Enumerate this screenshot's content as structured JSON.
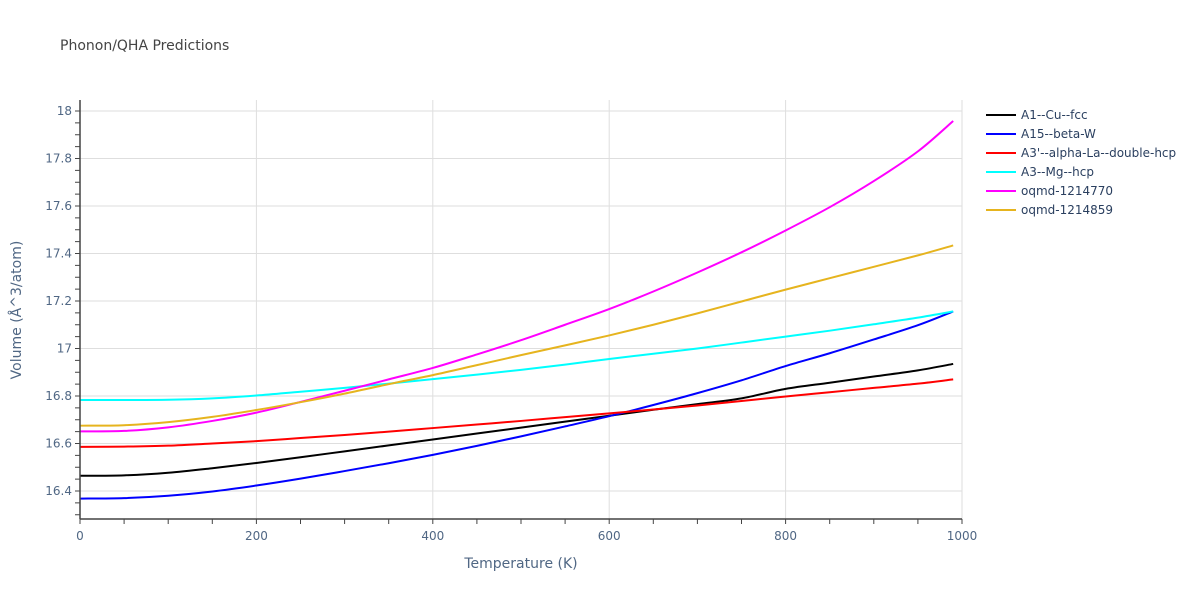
{
  "chart_data": {
    "type": "line",
    "title": "Phonon/QHA Predictions",
    "xlabel": "Temperature (K)",
    "ylabel": "Volume (Å^3/atom)",
    "xlim": [
      0,
      1000
    ],
    "ylim": [
      16.28,
      18.05
    ],
    "xticks": [
      0,
      200,
      400,
      600,
      800,
      1000
    ],
    "yticks": [
      16.4,
      16.6,
      16.8,
      17,
      17.2,
      17.4,
      17.6,
      17.8,
      18
    ],
    "ytick_labels": [
      "16.4",
      "16.6",
      "16.8",
      "17",
      "17.2",
      "17.4",
      "17.6",
      "17.8",
      "18"
    ],
    "grid": true,
    "legend_position": "right",
    "x": [
      0,
      50,
      100,
      150,
      200,
      250,
      300,
      350,
      400,
      450,
      500,
      550,
      600,
      650,
      700,
      750,
      800,
      850,
      900,
      950,
      990
    ],
    "series": [
      {
        "name": "A1--Cu--fcc",
        "color": "#000000",
        "values": [
          16.464,
          16.466,
          16.477,
          16.496,
          16.518,
          16.542,
          16.567,
          16.592,
          16.617,
          16.642,
          16.667,
          16.692,
          16.717,
          16.742,
          16.766,
          16.79,
          16.83,
          16.856,
          16.882,
          16.908,
          16.935
        ]
      },
      {
        "name": "A15--beta-W",
        "color": "#0000ff",
        "values": [
          16.368,
          16.37,
          16.38,
          16.398,
          16.423,
          16.452,
          16.484,
          16.517,
          16.552,
          16.59,
          16.63,
          16.672,
          16.715,
          16.762,
          16.812,
          16.866,
          16.926,
          16.98,
          17.038,
          17.098,
          17.156
        ]
      },
      {
        "name": "A3'--alpha-La--double-hcp",
        "color": "#ff0000",
        "values": [
          16.586,
          16.587,
          16.591,
          16.6,
          16.61,
          16.623,
          16.636,
          16.65,
          16.665,
          16.68,
          16.695,
          16.711,
          16.727,
          16.743,
          16.76,
          16.779,
          16.798,
          16.816,
          16.834,
          16.852,
          16.87
        ]
      },
      {
        "name": "A3--Mg--hcp",
        "color": "#00ffff",
        "values": [
          16.783,
          16.783,
          16.784,
          16.79,
          16.802,
          16.818,
          16.834,
          16.852,
          16.871,
          16.89,
          16.91,
          16.932,
          16.956,
          16.978,
          17.0,
          17.025,
          17.05,
          17.075,
          17.102,
          17.13,
          17.156
        ]
      },
      {
        "name": "oqmd-1214770",
        "color": "#ff00ff",
        "values": [
          16.651,
          16.653,
          16.668,
          16.695,
          16.73,
          16.775,
          16.822,
          16.87,
          16.918,
          16.975,
          17.035,
          17.1,
          17.166,
          17.24,
          17.32,
          17.405,
          17.497,
          17.595,
          17.705,
          17.83,
          17.958
        ]
      },
      {
        "name": "oqmd-1214859",
        "color": "#e6b41e",
        "values": [
          16.675,
          16.677,
          16.69,
          16.712,
          16.741,
          16.774,
          16.81,
          16.85,
          16.888,
          16.93,
          16.972,
          17.013,
          17.055,
          17.1,
          17.148,
          17.198,
          17.248,
          17.296,
          17.344,
          17.392,
          17.434
        ]
      }
    ]
  }
}
